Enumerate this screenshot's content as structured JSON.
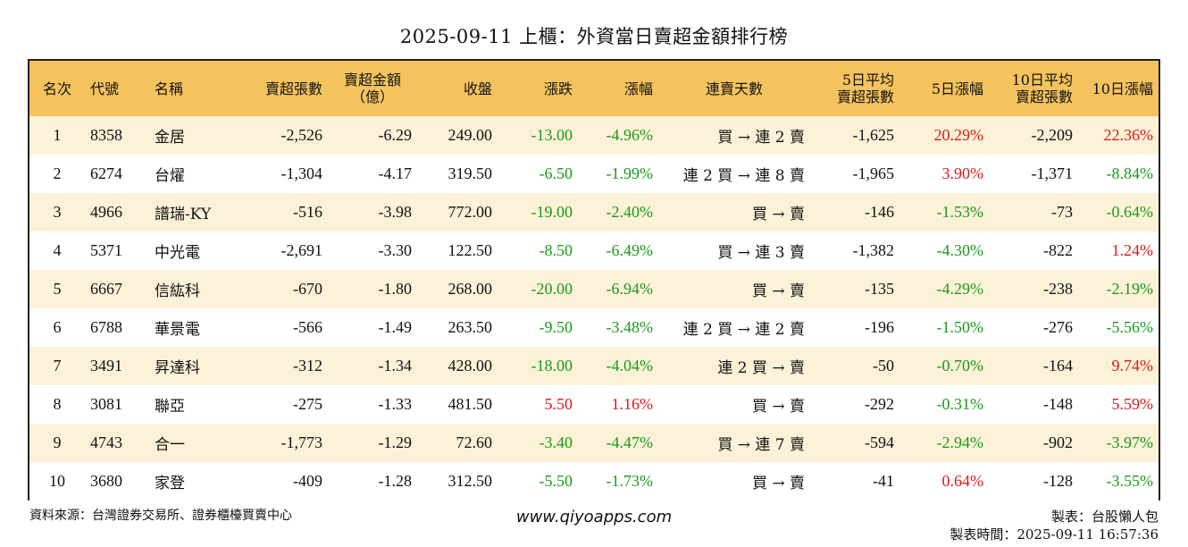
{
  "title": "2025-09-11 上櫃：外資當日賣超金額排行榜",
  "headers": {
    "rank": "名次",
    "code": "代號",
    "name": "名稱",
    "sell_shares": "賣超張數",
    "sell_amount_line1": "賣超金額",
    "sell_amount_line2": "（億）",
    "close": "收盤",
    "change": "漲跌",
    "change_pct": "漲幅",
    "streak": "連賣天數",
    "avg5_line1": "5日平均",
    "avg5_line2": "賣超張數",
    "pct5": "5日漲幅",
    "avg10_line1": "10日平均",
    "avg10_line2": "賣超張數",
    "pct10": "10日漲幅"
  },
  "colors": {
    "header_bg": "#f4c35d",
    "stripe_bg": "#fdf2d8",
    "negative": "#1a9a1a",
    "positive": "#e01818"
  },
  "rows": [
    {
      "rank": "1",
      "code": "8358",
      "name": "金居",
      "sell_shares": "-2,526",
      "sell_amount": "-6.29",
      "close": "249.00",
      "change": "-13.00",
      "change_pct": "-4.96%",
      "streak": "買 → 連 2 賣",
      "avg5": "-1,625",
      "pct5": "20.29%",
      "avg10": "-2,209",
      "pct10": "22.36%"
    },
    {
      "rank": "2",
      "code": "6274",
      "name": "台燿",
      "sell_shares": "-1,304",
      "sell_amount": "-4.17",
      "close": "319.50",
      "change": "-6.50",
      "change_pct": "-1.99%",
      "streak": "連 2 買 → 連 8 賣",
      "avg5": "-1,965",
      "pct5": "3.90%",
      "avg10": "-1,371",
      "pct10": "-8.84%"
    },
    {
      "rank": "3",
      "code": "4966",
      "name": "譜瑞-KY",
      "sell_shares": "-516",
      "sell_amount": "-3.98",
      "close": "772.00",
      "change": "-19.00",
      "change_pct": "-2.40%",
      "streak": "買 → 賣",
      "avg5": "-146",
      "pct5": "-1.53%",
      "avg10": "-73",
      "pct10": "-0.64%"
    },
    {
      "rank": "4",
      "code": "5371",
      "name": "中光電",
      "sell_shares": "-2,691",
      "sell_amount": "-3.30",
      "close": "122.50",
      "change": "-8.50",
      "change_pct": "-6.49%",
      "streak": "買 → 連 3 賣",
      "avg5": "-1,382",
      "pct5": "-4.30%",
      "avg10": "-822",
      "pct10": "1.24%"
    },
    {
      "rank": "5",
      "code": "6667",
      "name": "信紘科",
      "sell_shares": "-670",
      "sell_amount": "-1.80",
      "close": "268.00",
      "change": "-20.00",
      "change_pct": "-6.94%",
      "streak": "買 → 賣",
      "avg5": "-135",
      "pct5": "-4.29%",
      "avg10": "-238",
      "pct10": "-2.19%"
    },
    {
      "rank": "6",
      "code": "6788",
      "name": "華景電",
      "sell_shares": "-566",
      "sell_amount": "-1.49",
      "close": "263.50",
      "change": "-9.50",
      "change_pct": "-3.48%",
      "streak": "連 2 買 → 連 2 賣",
      "avg5": "-196",
      "pct5": "-1.50%",
      "avg10": "-276",
      "pct10": "-5.56%"
    },
    {
      "rank": "7",
      "code": "3491",
      "name": "昇達科",
      "sell_shares": "-312",
      "sell_amount": "-1.34",
      "close": "428.00",
      "change": "-18.00",
      "change_pct": "-4.04%",
      "streak": "連 2 買 → 賣",
      "avg5": "-50",
      "pct5": "-0.70%",
      "avg10": "-164",
      "pct10": "9.74%"
    },
    {
      "rank": "8",
      "code": "3081",
      "name": "聯亞",
      "sell_shares": "-275",
      "sell_amount": "-1.33",
      "close": "481.50",
      "change": "5.50",
      "change_pct": "1.16%",
      "streak": "買 → 賣",
      "avg5": "-292",
      "pct5": "-0.31%",
      "avg10": "-148",
      "pct10": "5.59%"
    },
    {
      "rank": "9",
      "code": "4743",
      "name": "合一",
      "sell_shares": "-1,773",
      "sell_amount": "-1.29",
      "close": "72.60",
      "change": "-3.40",
      "change_pct": "-4.47%",
      "streak": "買 → 連 7 賣",
      "avg5": "-594",
      "pct5": "-2.94%",
      "avg10": "-902",
      "pct10": "-3.97%"
    },
    {
      "rank": "10",
      "code": "3680",
      "name": "家登",
      "sell_shares": "-409",
      "sell_amount": "-1.28",
      "close": "312.50",
      "change": "-5.50",
      "change_pct": "-1.73%",
      "streak": "買 → 賣",
      "avg5": "-41",
      "pct5": "0.64%",
      "avg10": "-128",
      "pct10": "-3.55%"
    }
  ],
  "footer": {
    "source": "資料來源：台灣證券交易所、證券櫃檯買賣中心",
    "website": "www.qiyoapps.com",
    "author": "製表：台股懶人包",
    "made_time": "製表時間：2025-09-11 16:57:36"
  }
}
